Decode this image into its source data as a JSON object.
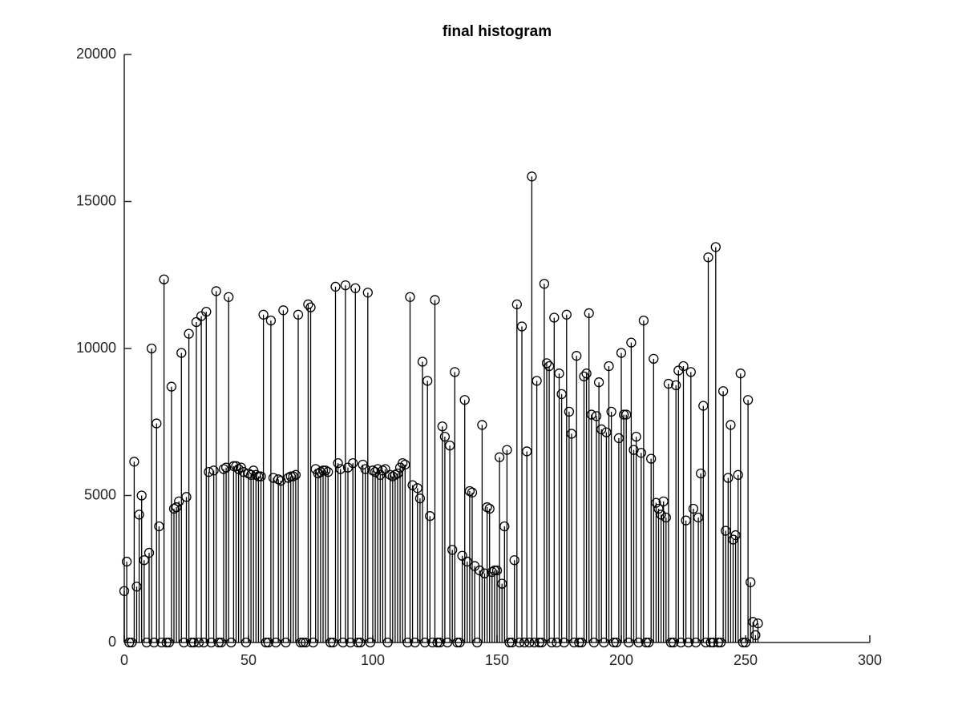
{
  "chart_data": {
    "type": "stem",
    "title": "final histogram",
    "x": [
      0,
      1,
      2,
      3,
      4,
      5,
      6,
      7,
      8,
      9,
      10,
      11,
      12,
      13,
      14,
      15,
      16,
      17,
      18,
      19,
      20,
      21,
      22,
      23,
      24,
      25,
      26,
      27,
      28,
      29,
      30,
      31,
      32,
      33,
      34,
      35,
      36,
      37,
      38,
      39,
      40,
      41,
      42,
      43,
      44,
      45,
      46,
      47,
      48,
      49,
      50,
      51,
      52,
      53,
      54,
      55,
      56,
      57,
      58,
      59,
      60,
      61,
      62,
      63,
      64,
      65,
      66,
      67,
      68,
      69,
      70,
      71,
      72,
      73,
      74,
      75,
      76,
      77,
      78,
      79,
      80,
      81,
      82,
      83,
      84,
      85,
      86,
      87,
      88,
      89,
      90,
      91,
      92,
      93,
      94,
      95,
      96,
      97,
      98,
      99,
      100,
      101,
      102,
      103,
      104,
      105,
      106,
      107,
      108,
      109,
      110,
      111,
      112,
      113,
      114,
      115,
      116,
      117,
      118,
      119,
      120,
      121,
      122,
      123,
      124,
      125,
      126,
      127,
      128,
      129,
      130,
      131,
      132,
      133,
      134,
      135,
      136,
      137,
      138,
      139,
      140,
      141,
      142,
      143,
      144,
      145,
      146,
      147,
      148,
      149,
      150,
      151,
      152,
      153,
      154,
      155,
      156,
      157,
      158,
      159,
      160,
      161,
      162,
      163,
      164,
      165,
      166,
      167,
      168,
      169,
      170,
      171,
      172,
      173,
      174,
      175,
      176,
      177,
      178,
      179,
      180,
      181,
      182,
      183,
      184,
      185,
      186,
      187,
      188,
      189,
      190,
      191,
      192,
      193,
      194,
      195,
      196,
      197,
      198,
      199,
      200,
      201,
      202,
      203,
      204,
      205,
      206,
      207,
      208,
      209,
      210,
      211,
      212,
      213,
      214,
      215,
      216,
      217,
      218,
      219,
      220,
      221,
      222,
      223,
      224,
      225,
      226,
      227,
      228,
      229,
      230,
      231,
      232,
      233,
      234,
      235,
      236,
      237,
      238,
      239,
      240,
      241,
      242,
      243,
      244,
      245,
      246,
      247,
      248,
      249,
      250,
      251,
      252,
      253,
      254,
      255
    ],
    "values": [
      1750,
      2750,
      0,
      0,
      6150,
      1900,
      4350,
      5000,
      2800,
      0,
      3050,
      10000,
      0,
      7450,
      3950,
      0,
      12350,
      0,
      0,
      8700,
      4550,
      4600,
      4800,
      9850,
      0,
      4950,
      10500,
      0,
      0,
      10900,
      0,
      11100,
      0,
      11250,
      5800,
      0,
      5850,
      11950,
      0,
      0,
      5900,
      5950,
      11750,
      0,
      6000,
      6000,
      5900,
      5950,
      5800,
      0,
      5750,
      5700,
      5850,
      5700,
      5650,
      5650,
      11150,
      0,
      0,
      10950,
      5600,
      0,
      5550,
      5500,
      11300,
      0,
      5600,
      5650,
      5650,
      5700,
      11150,
      0,
      0,
      0,
      11500,
      11400,
      0,
      5900,
      5750,
      5800,
      5850,
      5850,
      5800,
      0,
      0,
      12100,
      6100,
      5900,
      0,
      12150,
      5950,
      0,
      6100,
      12050,
      0,
      0,
      6050,
      5900,
      11900,
      0,
      5850,
      5800,
      5900,
      5700,
      5850,
      5900,
      0,
      5700,
      5650,
      5700,
      5750,
      5950,
      6100,
      6050,
      0,
      11750,
      5350,
      0,
      5250,
      4900,
      9550,
      0,
      8900,
      4300,
      0,
      11650,
      0,
      0,
      7350,
      7000,
      0,
      6700,
      3150,
      9200,
      0,
      0,
      2950,
      8250,
      2750,
      5150,
      5100,
      2600,
      0,
      2450,
      7400,
      2350,
      4600,
      4550,
      2400,
      2450,
      2450,
      6300,
      2000,
      3950,
      6550,
      0,
      0,
      2800,
      11500,
      0,
      10750,
      0,
      6500,
      0,
      15850,
      0,
      8900,
      0,
      0,
      12200,
      9500,
      9400,
      0,
      11050,
      0,
      9150,
      8450,
      0,
      11150,
      7850,
      7100,
      0,
      9750,
      0,
      0,
      9050,
      9150,
      11200,
      7750,
      0,
      7700,
      8850,
      7250,
      0,
      7150,
      9400,
      7850,
      0,
      0,
      6950,
      9850,
      7750,
      7750,
      0,
      10200,
      6550,
      7000,
      0,
      6450,
      10950,
      0,
      0,
      6250,
      9650,
      4750,
      4550,
      4350,
      4800,
      4250,
      8800,
      0,
      0,
      8750,
      9250,
      0,
      9400,
      4150,
      0,
      9200,
      4550,
      0,
      4250,
      5750,
      8050,
      0,
      13100,
      0,
      0,
      13450,
      0,
      0,
      8550,
      3800,
      5600,
      7400,
      3500,
      3650,
      5700,
      9150,
      0,
      0,
      8250,
      2050,
      700,
      250,
      650
    ],
    "color": "#000000",
    "xlim": [
      0,
      300
    ],
    "xticks": [
      0,
      50,
      100,
      150,
      200,
      250,
      300
    ],
    "ylim": [
      0,
      20000
    ],
    "yticks": [
      0,
      5000,
      10000,
      15000,
      20000
    ]
  }
}
